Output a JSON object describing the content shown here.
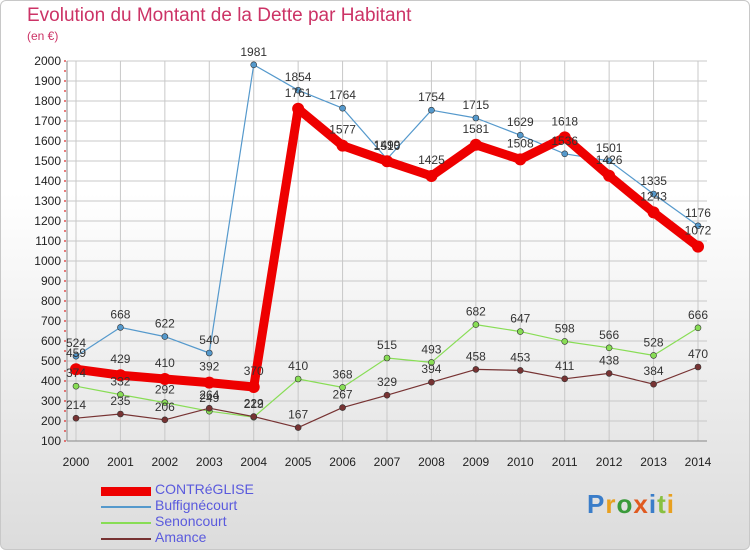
{
  "title": "Evolution du Montant de la Dette par Habitant",
  "unit_label": "(en €)",
  "logo_text": "Proxiti",
  "colors": {
    "title": "#cc3366",
    "grid": "#c8c8c8",
    "legend_text": "#5a5add"
  },
  "chart_data": {
    "type": "line",
    "title": "Evolution du Montant de la Dette par Habitant",
    "ylabel": "(en €)",
    "xlabel": "",
    "categories": [
      "2000",
      "2001",
      "2002",
      "2003",
      "2004",
      "2005",
      "2006",
      "2007",
      "2008",
      "2009",
      "2010",
      "2011",
      "2012",
      "2013",
      "2014"
    ],
    "ylim": [
      100,
      2000
    ],
    "yticks": [
      100,
      200,
      300,
      400,
      500,
      600,
      700,
      800,
      900,
      1000,
      1100,
      1200,
      1300,
      1400,
      1500,
      1600,
      1700,
      1800,
      1900,
      2000
    ],
    "grid": true,
    "legend_position": "bottom-left",
    "series": [
      {
        "name": "CONTRéGLISE",
        "color": "#ee0000",
        "values": [
          459,
          429,
          410,
          392,
          370,
          1761,
          1577,
          1499,
          1425,
          1581,
          1508,
          1618,
          1426,
          1243,
          1072
        ]
      },
      {
        "name": "Buffignécourt",
        "color": "#5599cc",
        "values": [
          524,
          668,
          622,
          540,
          1981,
          1854,
          1764,
          1510,
          1754,
          1715,
          1629,
          1536,
          1501,
          1335,
          1176
        ]
      },
      {
        "name": "Senoncourt",
        "color": "#88dd55",
        "values": [
          374,
          332,
          292,
          249,
          219,
          410,
          368,
          515,
          493,
          682,
          647,
          598,
          566,
          528,
          666
        ]
      },
      {
        "name": "Amance",
        "color": "#773333",
        "values": [
          214,
          235,
          206,
          264,
          222,
          167,
          267,
          329,
          394,
          458,
          453,
          411,
          438,
          384,
          470
        ]
      }
    ]
  }
}
